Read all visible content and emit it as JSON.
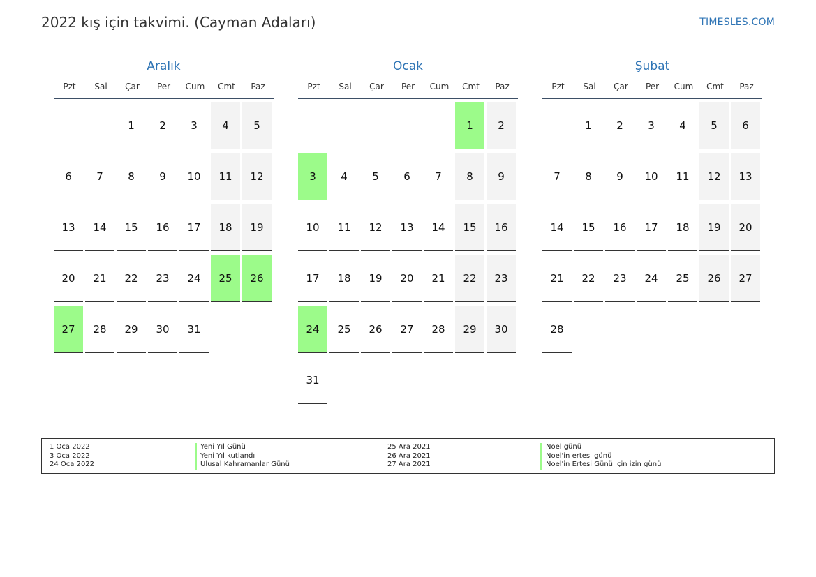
{
  "header": {
    "title": "2022 kış için takvimi. (Cayman Adaları)",
    "brand": "TIMESLES.COM"
  },
  "weekdays": [
    "Pzt",
    "Sal",
    "Çar",
    "Per",
    "Cum",
    "Cmt",
    "Paz"
  ],
  "months": [
    {
      "name": "Aralık",
      "weeks": [
        [
          "",
          "",
          "1",
          "2",
          "3",
          "4",
          "5"
        ],
        [
          "6",
          "7",
          "8",
          "9",
          "10",
          "11",
          "12"
        ],
        [
          "13",
          "14",
          "15",
          "16",
          "17",
          "18",
          "19"
        ],
        [
          "20",
          "21",
          "22",
          "23",
          "24",
          "25",
          "26"
        ],
        [
          "27",
          "28",
          "29",
          "30",
          "31",
          "",
          ""
        ]
      ],
      "holidays": [
        "25",
        "26",
        "27"
      ]
    },
    {
      "name": "Ocak",
      "weeks": [
        [
          "",
          "",
          "",
          "",
          "",
          "1",
          "2"
        ],
        [
          "3",
          "4",
          "5",
          "6",
          "7",
          "8",
          "9"
        ],
        [
          "10",
          "11",
          "12",
          "13",
          "14",
          "15",
          "16"
        ],
        [
          "17",
          "18",
          "19",
          "20",
          "21",
          "22",
          "23"
        ],
        [
          "24",
          "25",
          "26",
          "27",
          "28",
          "29",
          "30"
        ],
        [
          "31",
          "",
          "",
          "",
          "",
          "",
          ""
        ]
      ],
      "holidays": [
        "1",
        "3",
        "24"
      ]
    },
    {
      "name": "Şubat",
      "weeks": [
        [
          "",
          "1",
          "2",
          "3",
          "4",
          "5",
          "6"
        ],
        [
          "7",
          "8",
          "9",
          "10",
          "11",
          "12",
          "13"
        ],
        [
          "14",
          "15",
          "16",
          "17",
          "18",
          "19",
          "20"
        ],
        [
          "21",
          "22",
          "23",
          "24",
          "25",
          "26",
          "27"
        ],
        [
          "28",
          "",
          "",
          "",
          "",
          "",
          ""
        ]
      ],
      "holidays": []
    }
  ],
  "legend": {
    "col1_dates": [
      "1 Oca 2022",
      "3 Oca 2022",
      "24 Oca 2022"
    ],
    "col1_names": [
      "Yeni Yıl Günü",
      "Yeni Yıl kutlandı",
      "Ulusal Kahramanlar Günü"
    ],
    "col2_dates": [
      "25 Ara 2021",
      "26 Ara 2021",
      "27 Ara 2021"
    ],
    "col2_names": [
      "Noel günü",
      "Noel'in ertesi günü",
      "Noel'in Ertesi Günü için izin günü"
    ]
  },
  "colors": {
    "accent": "#2e74b5",
    "holiday": "#9cfb8a",
    "weekend": "#f3f3f3",
    "rule": "#3d4f66"
  }
}
